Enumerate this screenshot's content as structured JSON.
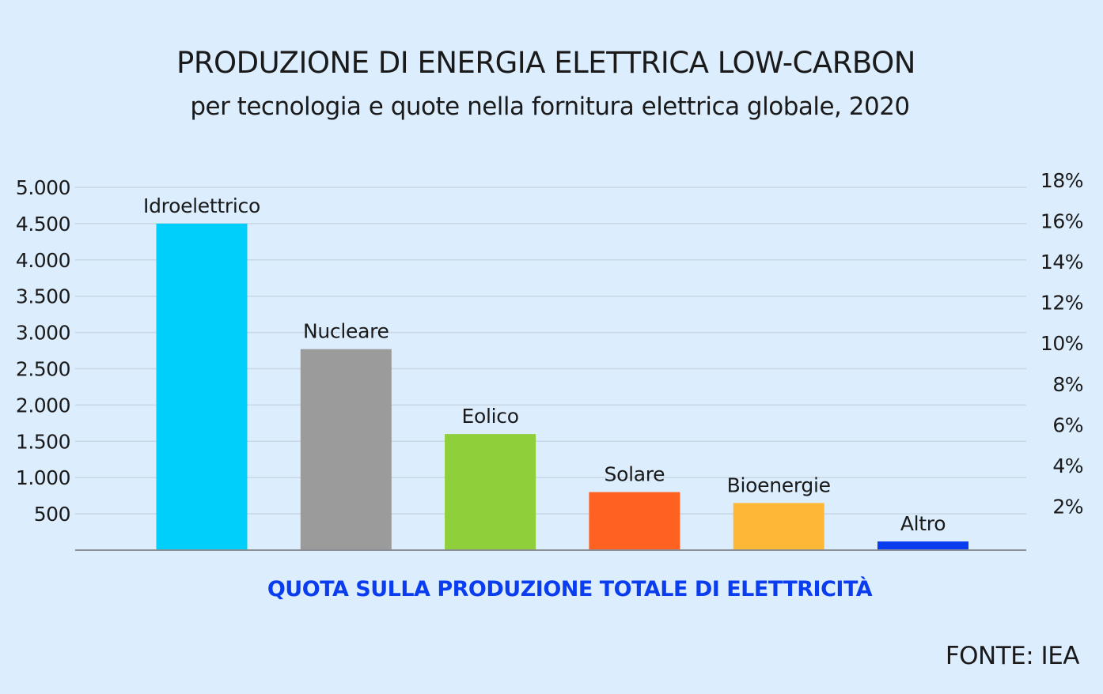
{
  "chart_data": {
    "type": "bar",
    "title": "PRODUZIONE DI ENERGIA ELETTRICA LOW-CARBON",
    "subtitle": "per tecnologia e quote nella fornitura elettrica globale, 2020",
    "categories": [
      "Idroelettrico",
      "Nucleare",
      "Eolico",
      "Solare",
      "Bioenergie",
      "Altro"
    ],
    "values": [
      4500,
      2770,
      1600,
      800,
      650,
      120
    ],
    "colors": [
      "#00cffb",
      "#9b9b9b",
      "#8fd03a",
      "#ff6220",
      "#ffb835",
      "#0a3cf0"
    ],
    "ylim": [
      0,
      5000
    ],
    "yticks": [
      500,
      1000,
      1500,
      2000,
      2500,
      3000,
      3500,
      4000,
      4500,
      5000
    ],
    "ytick_labels": [
      "500",
      "1.000",
      "1.500",
      "2.000",
      "2.500",
      "3.000",
      "3.500",
      "4.000",
      "4.500",
      "5.000"
    ],
    "y2lim": [
      0,
      18
    ],
    "y2ticks": [
      2,
      4,
      6,
      8,
      10,
      12,
      14,
      16,
      18
    ],
    "y2tick_labels": [
      "2%",
      "4%",
      "6%",
      "8%",
      "10%",
      "12%",
      "14%",
      "16%",
      "18%"
    ],
    "grid": true,
    "legend": "none",
    "annotation": "QUOTA SULLA PRODUZIONE TOTALE DI ELETTRICITÀ",
    "source": "FONTE: IEA"
  }
}
